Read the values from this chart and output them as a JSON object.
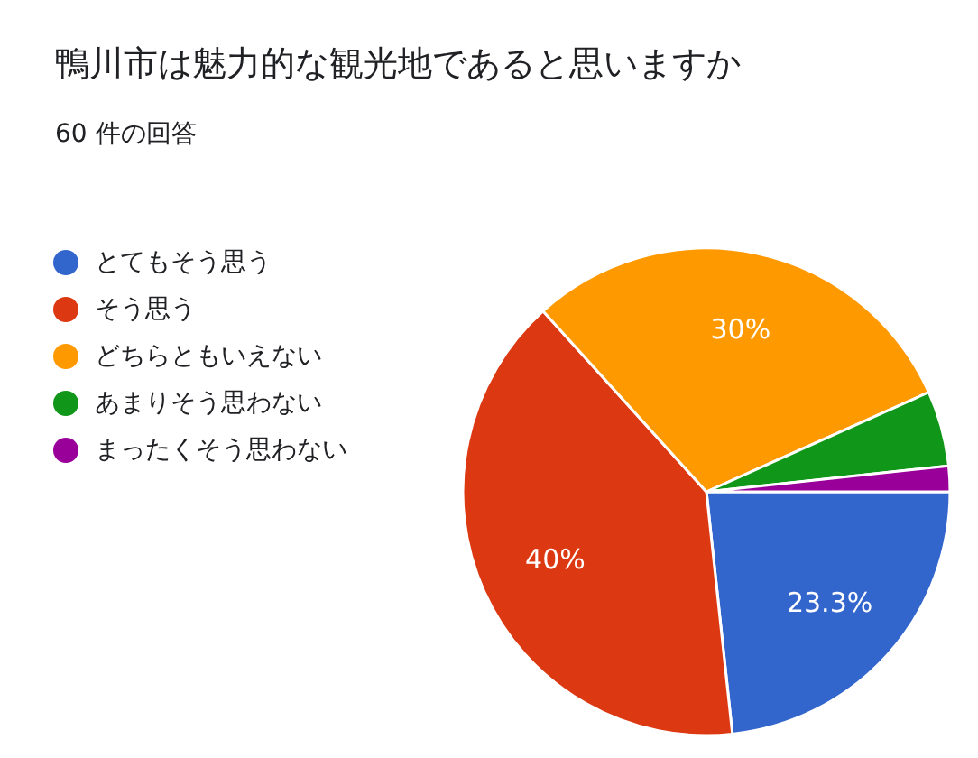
{
  "chart_data": {
    "type": "pie",
    "title": "鴨川市は魅力的な観光地であると思いますか",
    "subtitle": "60 件の回答",
    "categories": [
      "とてもそう思う",
      "そう思う",
      "どちらともいえない",
      "あまりそう思わない",
      "まったくそう思わない"
    ],
    "values": [
      23.3,
      40,
      30,
      5,
      1.7
    ],
    "colors": [
      "#3366cc",
      "#dc3912",
      "#ff9900",
      "#109618",
      "#990099"
    ],
    "value_labels": [
      "23.3%",
      "40%",
      "30%",
      null,
      null
    ],
    "legend": "left"
  }
}
